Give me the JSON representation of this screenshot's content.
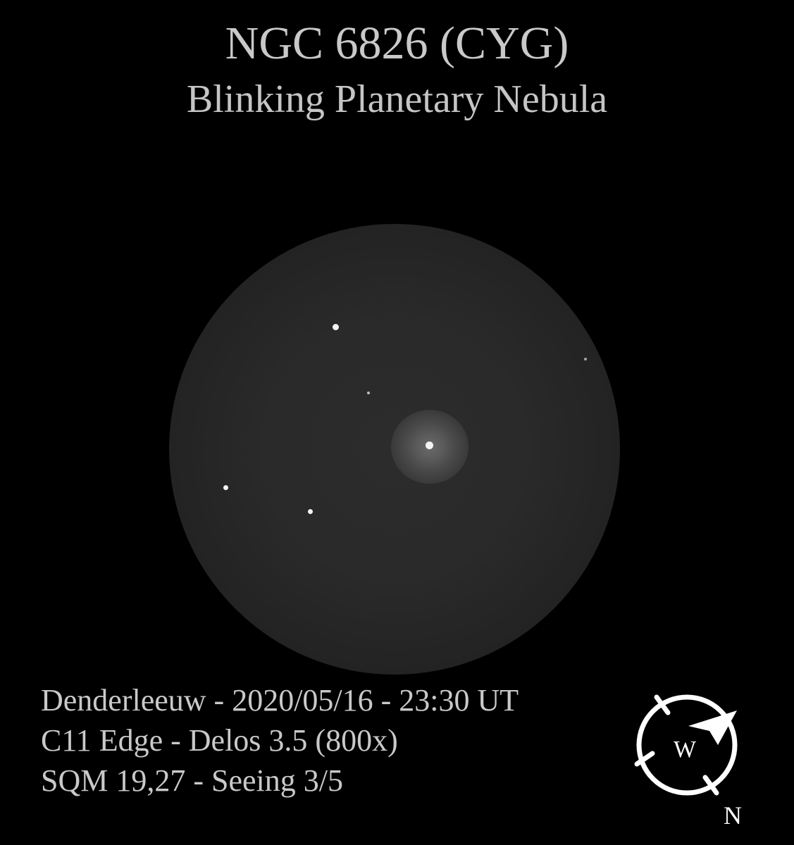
{
  "header": {
    "title": "NGC 6826 (CYG)",
    "subtitle": "Blinking Planetary Nebula"
  },
  "observation": {
    "lines": [
      "Denderleeuw - 2020/05/16 - 23:30 UT",
      "C11 Edge - Delos 3.5 (800x)",
      "SQM 19,27 - Seeing 3/5"
    ]
  },
  "compass": {
    "west_label": "W",
    "north_label": "N"
  }
}
